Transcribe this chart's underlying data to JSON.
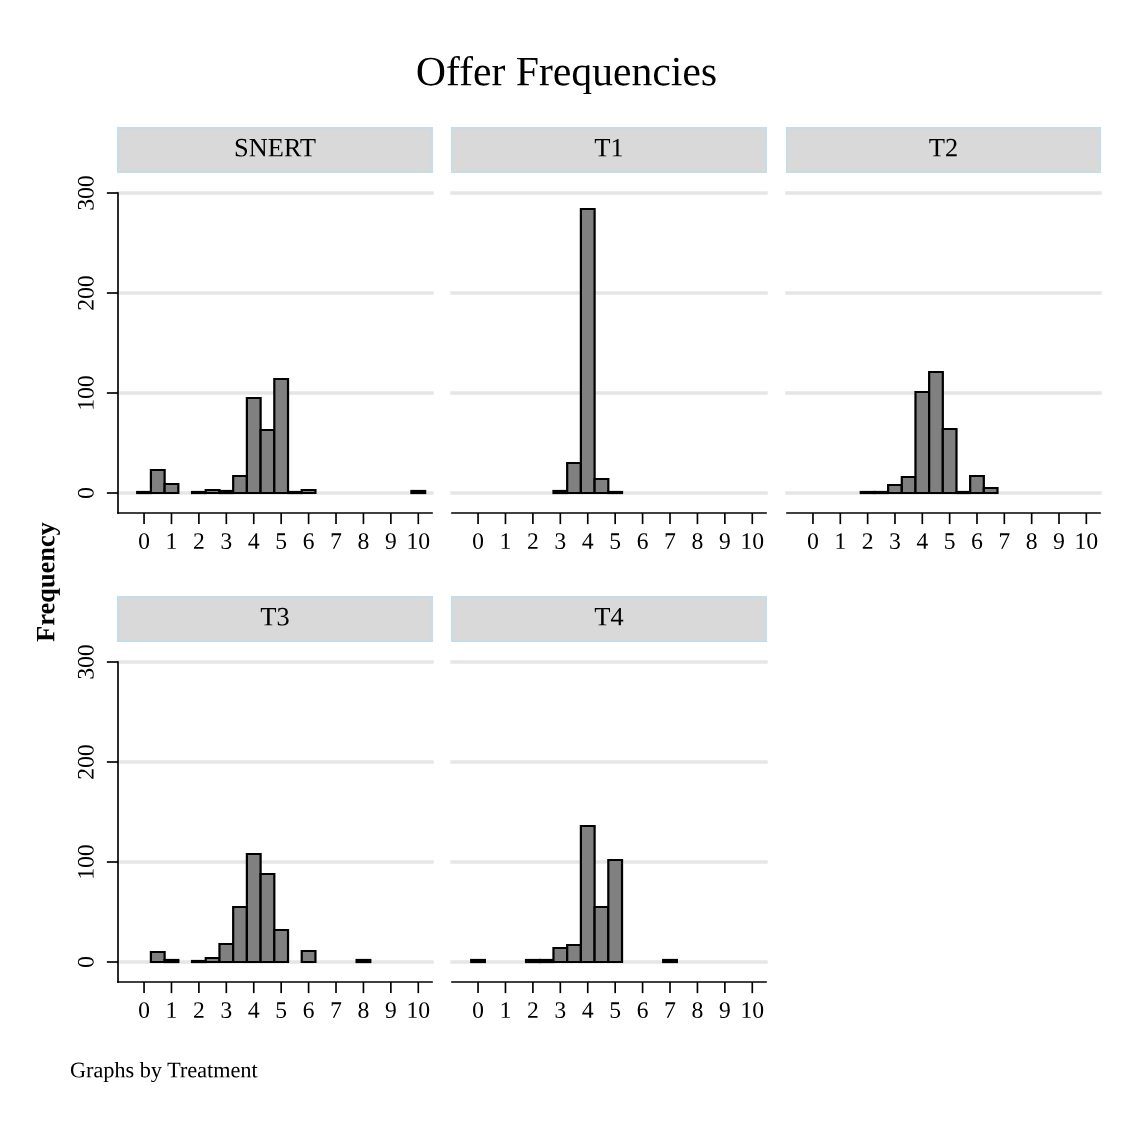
{
  "chart_data": [
    {
      "type": "histogram",
      "title": "SNERT",
      "ylabel": "Frequency",
      "annotations": [
        "Offer Frequencies",
        "Graphs by Treatment"
      ],
      "color": "#808080",
      "grid": "y",
      "bins": [
        -0.25,
        0.25,
        0.75,
        1.25,
        1.75,
        2.25,
        2.75,
        3.25,
        3.75,
        4.25,
        4.75,
        5.25,
        5.75,
        6.25,
        6.75,
        7.25,
        7.75,
        8.25,
        8.75,
        9.25,
        9.75,
        10.25
      ],
      "values": [
        1,
        23,
        9,
        0,
        1,
        3,
        2,
        17,
        95,
        63,
        114,
        1,
        3,
        0,
        0,
        0,
        0,
        0,
        0,
        0,
        2
      ],
      "xlim": [
        -0.95,
        10.5
      ],
      "xticks": [
        0,
        1,
        2,
        3,
        4,
        5,
        6,
        7,
        8,
        9,
        10
      ],
      "ylim": [
        -20,
        300
      ],
      "yticks": [
        0,
        100,
        200,
        300
      ]
    },
    {
      "type": "histogram",
      "title": "T1",
      "color": "#808080",
      "grid": "y",
      "tick_labels": "x",
      "bins": [
        -0.25,
        0.25,
        0.75,
        1.25,
        1.75,
        2.25,
        2.75,
        3.25,
        3.75,
        4.25,
        4.75,
        5.25,
        5.75,
        6.25,
        6.75,
        7.25,
        7.75,
        8.25,
        8.75,
        9.25,
        9.75,
        10.25
      ],
      "values": [
        0,
        0,
        0,
        0,
        0,
        0,
        2,
        30,
        284,
        14,
        1,
        0,
        0,
        0,
        0,
        0,
        0,
        0,
        0,
        0,
        0
      ],
      "xlim": [
        -0.95,
        10.5
      ],
      "xticks": [
        0,
        1,
        2,
        3,
        4,
        5,
        6,
        7,
        8,
        9,
        10
      ],
      "ylim": [
        -20,
        300
      ],
      "yticks": [
        0,
        100,
        200,
        300
      ]
    },
    {
      "type": "histogram",
      "title": "T2",
      "color": "#808080",
      "grid": "y",
      "tick_labels": "x",
      "bins": [
        -0.25,
        0.25,
        0.75,
        1.25,
        1.75,
        2.25,
        2.75,
        3.25,
        3.75,
        4.25,
        4.75,
        5.25,
        5.75,
        6.25,
        6.75,
        7.25,
        7.75,
        8.25,
        8.75,
        9.25,
        9.75,
        10.25
      ],
      "values": [
        0,
        0,
        0,
        0,
        1,
        1,
        8,
        16,
        101,
        121,
        64,
        1,
        17,
        5,
        0,
        0,
        0,
        0,
        0,
        0,
        0
      ],
      "xlim": [
        -0.95,
        10.5
      ],
      "xticks": [
        0,
        1,
        2,
        3,
        4,
        5,
        6,
        7,
        8,
        9,
        10
      ],
      "ylim": [
        -20,
        300
      ],
      "yticks": [
        0,
        100,
        200,
        300
      ]
    },
    {
      "type": "histogram",
      "title": "T3",
      "color": "#808080",
      "grid": "y",
      "bins": [
        -0.25,
        0.25,
        0.75,
        1.25,
        1.75,
        2.25,
        2.75,
        3.25,
        3.75,
        4.25,
        4.75,
        5.25,
        5.75,
        6.25,
        6.75,
        7.25,
        7.75,
        8.25,
        8.75,
        9.25,
        9.75,
        10.25
      ],
      "values": [
        0,
        10,
        2,
        0,
        1,
        4,
        18,
        55,
        108,
        88,
        32,
        0,
        11,
        0,
        0,
        0,
        2,
        0,
        0,
        0,
        0
      ],
      "xlim": [
        -0.95,
        10.5
      ],
      "xticks": [
        0,
        1,
        2,
        3,
        4,
        5,
        6,
        7,
        8,
        9,
        10
      ],
      "ylim": [
        -20,
        300
      ],
      "yticks": [
        0,
        100,
        200,
        300
      ]
    },
    {
      "type": "histogram",
      "title": "T4",
      "color": "#808080",
      "grid": "y",
      "tick_labels": "x",
      "bins": [
        -0.25,
        0.25,
        0.75,
        1.25,
        1.75,
        2.25,
        2.75,
        3.25,
        3.75,
        4.25,
        4.75,
        5.25,
        5.75,
        6.25,
        6.75,
        7.25,
        7.75,
        8.25,
        8.75,
        9.25,
        9.75,
        10.25
      ],
      "values": [
        2,
        0,
        0,
        0,
        2,
        2,
        14,
        17,
        136,
        55,
        102,
        0,
        0,
        0,
        2,
        0,
        0,
        0,
        0,
        0,
        0
      ],
      "xlim": [
        -0.95,
        10.5
      ],
      "xticks": [
        0,
        1,
        2,
        3,
        4,
        5,
        6,
        7,
        8,
        9,
        10
      ],
      "ylim": [
        -20,
        300
      ],
      "yticks": [
        0,
        100,
        200,
        300
      ]
    }
  ]
}
